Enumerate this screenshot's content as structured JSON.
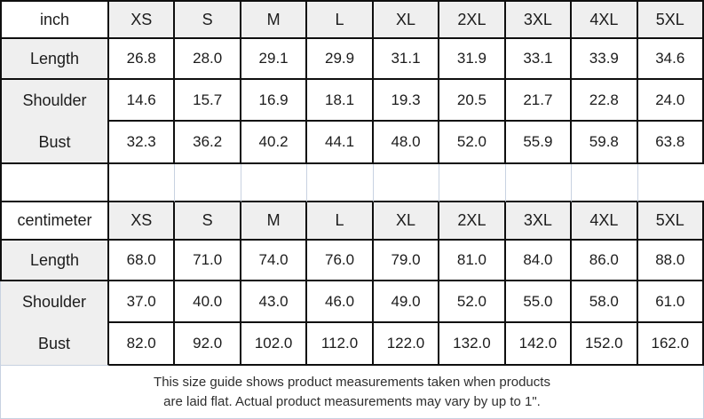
{
  "chart_data": [
    {
      "type": "table",
      "unit": "inch",
      "sizes": [
        "XS",
        "S",
        "M",
        "L",
        "XL",
        "2XL",
        "3XL",
        "4XL",
        "5XL"
      ],
      "rows": [
        {
          "label": "Length",
          "values": [
            "26.8",
            "28.0",
            "29.1",
            "29.9",
            "31.1",
            "31.9",
            "33.1",
            "33.9",
            "34.6"
          ]
        },
        {
          "label": "Shoulder",
          "values": [
            "14.6",
            "15.7",
            "16.9",
            "18.1",
            "19.3",
            "20.5",
            "21.7",
            "22.8",
            "24.0"
          ]
        },
        {
          "label": "Bust",
          "values": [
            "32.3",
            "36.2",
            "40.2",
            "44.1",
            "48.0",
            "52.0",
            "55.9",
            "59.8",
            "63.8"
          ]
        }
      ]
    },
    {
      "type": "table",
      "unit": "centimeter",
      "sizes": [
        "XS",
        "S",
        "M",
        "L",
        "XL",
        "2XL",
        "3XL",
        "4XL",
        "5XL"
      ],
      "rows": [
        {
          "label": "Length",
          "values": [
            "68.0",
            "71.0",
            "74.0",
            "76.0",
            "79.0",
            "81.0",
            "84.0",
            "86.0",
            "88.0"
          ]
        },
        {
          "label": "Shoulder",
          "values": [
            "37.0",
            "40.0",
            "43.0",
            "46.0",
            "49.0",
            "52.0",
            "55.0",
            "58.0",
            "61.0"
          ]
        },
        {
          "label": "Bust",
          "values": [
            "82.0",
            "92.0",
            "102.0",
            "112.0",
            "122.0",
            "132.0",
            "142.0",
            "152.0",
            "162.0"
          ]
        }
      ]
    }
  ],
  "footer": {
    "line1": "This size guide shows product measurements taken when products",
    "line2": "are laid flat. Actual product measurements may vary by up to 1\"."
  },
  "colors": {
    "border_dark": "#0f0f0f",
    "border_light": "#c8d2e1",
    "header_fill": "#efefef"
  }
}
